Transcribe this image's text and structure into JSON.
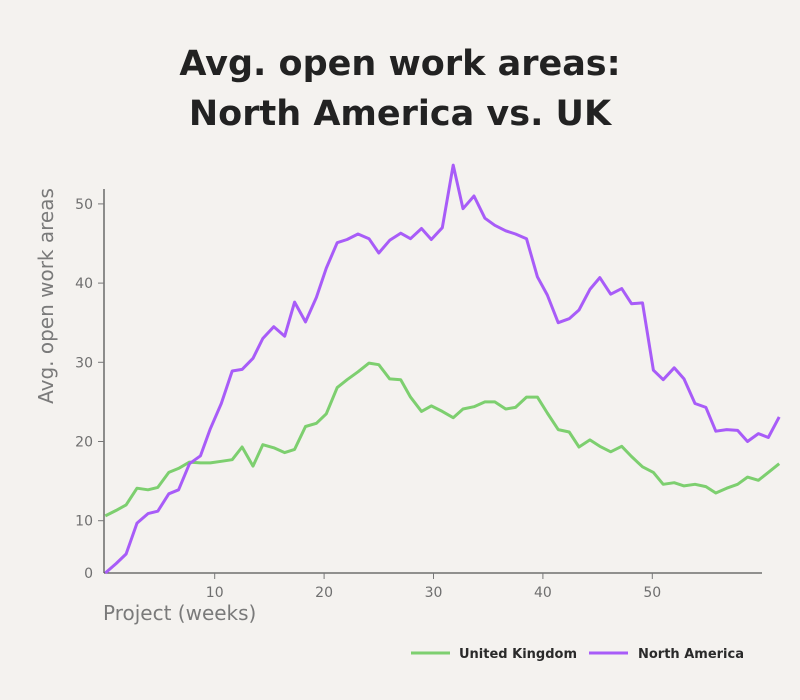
{
  "chart_data": {
    "type": "line",
    "title": [
      "Avg. open work areas:",
      "North America vs. UK"
    ],
    "xlabel": "Project (weeks)",
    "ylabel": "Avg. open work areas",
    "xlim": [
      0,
      60
    ],
    "ylim": [
      3.4,
      51.9
    ],
    "xticks": [
      10,
      20,
      30,
      40,
      50
    ],
    "yticks": [
      0,
      10,
      20,
      30,
      40,
      50
    ],
    "grid": false,
    "legend": "bottom-right",
    "x": [
      0,
      1,
      1.9,
      2.9,
      3.9,
      4.8,
      5.8,
      6.7,
      7.7,
      8.7,
      9.6,
      10.6,
      11.6,
      12.5,
      13.5,
      14.4,
      15.4,
      16.4,
      17.3,
      18.3,
      19.3,
      20.2,
      21.2,
      22.1,
      23.1,
      24.1,
      25,
      26,
      27,
      27.9,
      28.9,
      29.8,
      30.8,
      31.8,
      32.7,
      33.7,
      34.7,
      35.6,
      36.6,
      37.5,
      38.5,
      39.5,
      40.4,
      41.4,
      42.4,
      43.3,
      44.3,
      45.2,
      46.2,
      47.2,
      48.1,
      49.1,
      50.1,
      51,
      52,
      52.9,
      53.9,
      54.9,
      55.8,
      56.8,
      57.8,
      58.7,
      59.7,
      60.6,
      61.6
    ],
    "series": [
      {
        "name": "United Kingdom",
        "color": "#7dcf6f",
        "values": [
          10.6,
          11.3,
          12.0,
          14.1,
          13.9,
          14.2,
          16.1,
          16.6,
          17.4,
          17.3,
          17.3,
          17.5,
          17.7,
          19.3,
          16.9,
          19.6,
          19.2,
          18.6,
          19.0,
          21.9,
          22.3,
          23.5,
          26.8,
          27.8,
          28.8,
          29.9,
          29.7,
          27.9,
          27.8,
          25.6,
          23.8,
          24.5,
          23.8,
          23.0,
          24.1,
          24.4,
          25.0,
          25.0,
          24.1,
          24.3,
          25.6,
          25.6,
          23.6,
          21.5,
          21.2,
          19.3,
          20.2,
          19.4,
          18.7,
          19.4,
          18.1,
          16.8,
          16.1,
          14.6,
          14.8,
          14.4,
          14.6,
          14.3,
          13.5,
          14.1,
          14.6,
          15.5,
          15.1,
          16.1,
          17.2
        ]
      },
      {
        "name": "North America",
        "color": "#a85cf8",
        "values": [
          3.4,
          4.6,
          5.8,
          9.7,
          10.9,
          11.2,
          13.4,
          13.9,
          17.2,
          18.2,
          21.6,
          24.8,
          28.9,
          29.1,
          30.5,
          33.0,
          34.5,
          33.3,
          37.6,
          35.1,
          38.2,
          41.9,
          45.1,
          45.5,
          46.2,
          45.6,
          43.8,
          45.4,
          46.3,
          45.6,
          46.9,
          45.5,
          47.0,
          54.9,
          49.4,
          51.0,
          48.2,
          47.3,
          46.6,
          46.2,
          45.6,
          40.8,
          38.5,
          35.0,
          35.5,
          36.6,
          39.2,
          40.7,
          38.6,
          39.3,
          37.4,
          37.5,
          29.0,
          27.8,
          29.3,
          27.9,
          24.8,
          24.3,
          21.3,
          21.5,
          21.4,
          20.0,
          21.0,
          20.5,
          23.1
        ]
      }
    ]
  }
}
